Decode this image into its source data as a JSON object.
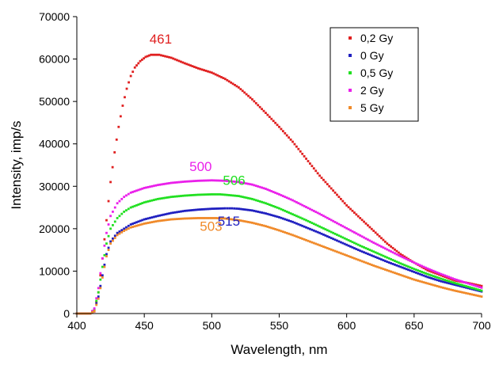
{
  "chart_data": {
    "type": "scatter",
    "title": "",
    "xlabel": "Wavelength, nm",
    "ylabel": "Intensity, imp/s",
    "xlim": [
      400,
      700
    ],
    "ylim": [
      0,
      70000
    ],
    "xticks": [
      "400",
      "450",
      "500",
      "550",
      "600",
      "650",
      "700"
    ],
    "yticks": [
      "0",
      "10000",
      "20000",
      "30000",
      "40000",
      "50000",
      "60000",
      "70000"
    ],
    "grid": false,
    "legend_position": "top-right",
    "series": [
      {
        "name": "0,2 Gy",
        "color": "#e02020",
        "points": [
          [
            400,
            0
          ],
          [
            410,
            0
          ],
          [
            413,
            500
          ],
          [
            416,
            5000
          ],
          [
            419,
            13000
          ],
          [
            422,
            22000
          ],
          [
            425,
            31000
          ],
          [
            428,
            38000
          ],
          [
            431,
            44000
          ],
          [
            434,
            49000
          ],
          [
            437,
            53000
          ],
          [
            440,
            56000
          ],
          [
            443,
            58000
          ],
          [
            447,
            59500
          ],
          [
            451,
            60500
          ],
          [
            455,
            61000
          ],
          [
            461,
            61000
          ],
          [
            470,
            60300
          ],
          [
            480,
            59000
          ],
          [
            490,
            57800
          ],
          [
            500,
            56800
          ],
          [
            510,
            55300
          ],
          [
            520,
            53300
          ],
          [
            530,
            50500
          ],
          [
            540,
            47300
          ],
          [
            550,
            44000
          ],
          [
            560,
            40500
          ],
          [
            570,
            36500
          ],
          [
            580,
            32500
          ],
          [
            590,
            29000
          ],
          [
            600,
            25500
          ],
          [
            610,
            22500
          ],
          [
            620,
            19500
          ],
          [
            630,
            16500
          ],
          [
            640,
            14000
          ],
          [
            650,
            12000
          ],
          [
            660,
            10200
          ],
          [
            670,
            9000
          ],
          [
            680,
            7800
          ],
          [
            690,
            7200
          ],
          [
            700,
            6500
          ]
        ]
      },
      {
        "name": "0 Gy",
        "color": "#2020c0",
        "points": [
          [
            400,
            0
          ],
          [
            410,
            0
          ],
          [
            413,
            800
          ],
          [
            416,
            4000
          ],
          [
            419,
            9000
          ],
          [
            422,
            14000
          ],
          [
            425,
            17000
          ],
          [
            430,
            19000
          ],
          [
            435,
            20000
          ],
          [
            440,
            21000
          ],
          [
            450,
            22200
          ],
          [
            460,
            23000
          ],
          [
            470,
            23700
          ],
          [
            480,
            24200
          ],
          [
            490,
            24500
          ],
          [
            500,
            24700
          ],
          [
            510,
            24800
          ],
          [
            515,
            24800
          ],
          [
            520,
            24700
          ],
          [
            530,
            24300
          ],
          [
            540,
            23600
          ],
          [
            550,
            22700
          ],
          [
            560,
            21600
          ],
          [
            570,
            20300
          ],
          [
            580,
            19000
          ],
          [
            590,
            17600
          ],
          [
            600,
            16200
          ],
          [
            610,
            14800
          ],
          [
            620,
            13500
          ],
          [
            630,
            12200
          ],
          [
            640,
            11000
          ],
          [
            650,
            9800
          ],
          [
            660,
            8600
          ],
          [
            670,
            7600
          ],
          [
            680,
            6800
          ],
          [
            690,
            6000
          ],
          [
            700,
            5200
          ]
        ]
      },
      {
        "name": "0,5 Gy",
        "color": "#22e022",
        "points": [
          [
            400,
            0
          ],
          [
            410,
            0
          ],
          [
            413,
            1000
          ],
          [
            416,
            5000
          ],
          [
            419,
            11000
          ],
          [
            422,
            16500
          ],
          [
            425,
            20000
          ],
          [
            430,
            22500
          ],
          [
            435,
            24000
          ],
          [
            440,
            25000
          ],
          [
            450,
            26200
          ],
          [
            460,
            27000
          ],
          [
            470,
            27500
          ],
          [
            480,
            27800
          ],
          [
            490,
            28000
          ],
          [
            500,
            28100
          ],
          [
            506,
            28100
          ],
          [
            510,
            28000
          ],
          [
            520,
            27700
          ],
          [
            530,
            27000
          ],
          [
            540,
            26000
          ],
          [
            550,
            24800
          ],
          [
            560,
            23400
          ],
          [
            570,
            22000
          ],
          [
            580,
            20500
          ],
          [
            590,
            19000
          ],
          [
            600,
            17500
          ],
          [
            610,
            16000
          ],
          [
            620,
            14600
          ],
          [
            630,
            13200
          ],
          [
            640,
            11800
          ],
          [
            650,
            10500
          ],
          [
            660,
            9300
          ],
          [
            670,
            8200
          ],
          [
            680,
            7200
          ],
          [
            690,
            6300
          ],
          [
            700,
            5400
          ]
        ]
      },
      {
        "name": "2 Gy",
        "color": "#ea20ea",
        "points": [
          [
            400,
            0
          ],
          [
            410,
            0
          ],
          [
            413,
            1200
          ],
          [
            416,
            6000
          ],
          [
            419,
            13000
          ],
          [
            422,
            19000
          ],
          [
            425,
            23000
          ],
          [
            430,
            26000
          ],
          [
            435,
            27500
          ],
          [
            440,
            28500
          ],
          [
            450,
            29600
          ],
          [
            460,
            30300
          ],
          [
            470,
            30800
          ],
          [
            480,
            31100
          ],
          [
            490,
            31300
          ],
          [
            500,
            31400
          ],
          [
            510,
            31300
          ],
          [
            520,
            31000
          ],
          [
            530,
            30400
          ],
          [
            540,
            29400
          ],
          [
            550,
            28100
          ],
          [
            560,
            26700
          ],
          [
            570,
            25100
          ],
          [
            580,
            23500
          ],
          [
            590,
            21800
          ],
          [
            600,
            20100
          ],
          [
            610,
            18400
          ],
          [
            620,
            16700
          ],
          [
            630,
            15100
          ],
          [
            640,
            13500
          ],
          [
            650,
            12000
          ],
          [
            660,
            10600
          ],
          [
            670,
            9300
          ],
          [
            680,
            8100
          ],
          [
            690,
            7100
          ],
          [
            700,
            6100
          ]
        ]
      },
      {
        "name": "5 Gy",
        "color": "#f08a2a",
        "points": [
          [
            400,
            0
          ],
          [
            410,
            0
          ],
          [
            413,
            600
          ],
          [
            416,
            3500
          ],
          [
            419,
            8500
          ],
          [
            422,
            13500
          ],
          [
            425,
            16500
          ],
          [
            430,
            18500
          ],
          [
            435,
            19500
          ],
          [
            440,
            20300
          ],
          [
            450,
            21200
          ],
          [
            460,
            21800
          ],
          [
            470,
            22200
          ],
          [
            480,
            22400
          ],
          [
            490,
            22500
          ],
          [
            500,
            22500
          ],
          [
            503,
            22500
          ],
          [
            510,
            22400
          ],
          [
            520,
            22000
          ],
          [
            530,
            21400
          ],
          [
            540,
            20600
          ],
          [
            550,
            19600
          ],
          [
            560,
            18500
          ],
          [
            570,
            17300
          ],
          [
            580,
            16100
          ],
          [
            590,
            14900
          ],
          [
            600,
            13700
          ],
          [
            610,
            12500
          ],
          [
            620,
            11300
          ],
          [
            630,
            10200
          ],
          [
            640,
            9100
          ],
          [
            650,
            8000
          ],
          [
            660,
            7100
          ],
          [
            670,
            6200
          ],
          [
            680,
            5400
          ],
          [
            690,
            4700
          ],
          [
            700,
            4000
          ]
        ]
      }
    ],
    "annotations": [
      {
        "text": "461",
        "x": 461,
        "y": 61000,
        "color": "#e02020"
      },
      {
        "text": "500",
        "x": 500,
        "y": 31400,
        "color": "#ea20ea"
      },
      {
        "text": "506",
        "x": 506,
        "y": 28100,
        "color": "#22e022"
      },
      {
        "text": "503",
        "x": 503,
        "y": 22500,
        "color": "#f08a2a"
      },
      {
        "text": "515",
        "x": 515,
        "y": 24800,
        "color": "#2020c0"
      }
    ]
  }
}
